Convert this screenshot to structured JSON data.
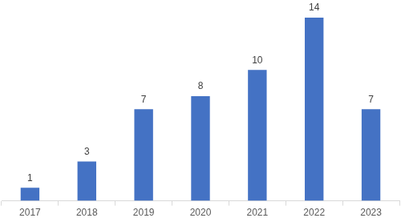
{
  "chart_data": {
    "type": "bar",
    "categories": [
      "2017",
      "2018",
      "2019",
      "2020",
      "2021",
      "2022",
      "2023"
    ],
    "values": [
      1,
      3,
      7,
      8,
      10,
      14,
      7
    ],
    "color": "#4472c4",
    "ylim": [
      0,
      14
    ],
    "grid": false,
    "data_labels": true,
    "tick_labels": "x"
  }
}
